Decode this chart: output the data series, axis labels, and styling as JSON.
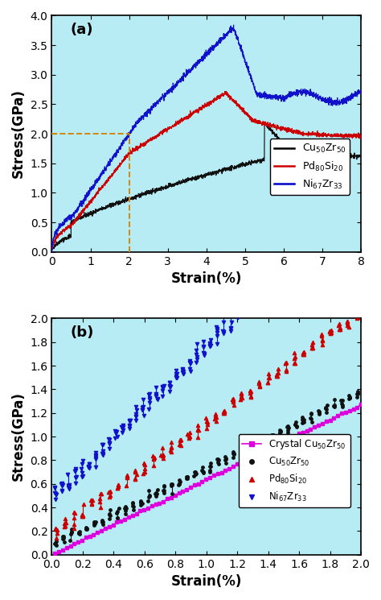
{
  "background_color": "#b8ecf5",
  "fig_bg": "#ffffff",
  "panel_a": {
    "label": "(a)",
    "xlim": [
      0,
      8
    ],
    "ylim": [
      0,
      4.0
    ],
    "xticks": [
      0,
      1,
      2,
      3,
      4,
      5,
      6,
      7,
      8
    ],
    "yticks": [
      0.0,
      0.5,
      1.0,
      1.5,
      2.0,
      2.5,
      3.0,
      3.5,
      4.0
    ],
    "xlabel": "Strain(%)",
    "ylabel": "Stress(GPa)",
    "dashed_x": 2.0,
    "dashed_y": 2.0,
    "dashed_color": "#d4870a",
    "legend_labels": [
      "Cu$_{50}$Zr$_{50}$",
      "Pd$_{80}$Si$_{20}$",
      "Ni$_{67}$Zr$_{33}$"
    ],
    "legend_colors": [
      "#000000",
      "#cc0000",
      "#0000cc"
    ]
  },
  "panel_b": {
    "label": "(b)",
    "xlim": [
      0,
      2.0
    ],
    "ylim": [
      0,
      2.0
    ],
    "xticks": [
      0.0,
      0.2,
      0.4,
      0.6,
      0.8,
      1.0,
      1.2,
      1.4,
      1.6,
      1.8,
      2.0
    ],
    "yticks": [
      0.0,
      0.2,
      0.4,
      0.6,
      0.8,
      1.0,
      1.2,
      1.4,
      1.6,
      1.8,
      2.0
    ],
    "xlabel": "Strain(%)",
    "ylabel": "Stress(GPa)",
    "legend_labels": [
      "Crystal Cu$_{50}$Zr$_{50}$",
      "Cu$_{50}$Zr$_{50}$",
      "Pd$_{80}$Si$_{20}$",
      "Ni$_{67}$Zr$_{33}$"
    ],
    "legend_colors": [
      "#dd00dd",
      "#000000",
      "#cc0000",
      "#0000cc"
    ]
  }
}
